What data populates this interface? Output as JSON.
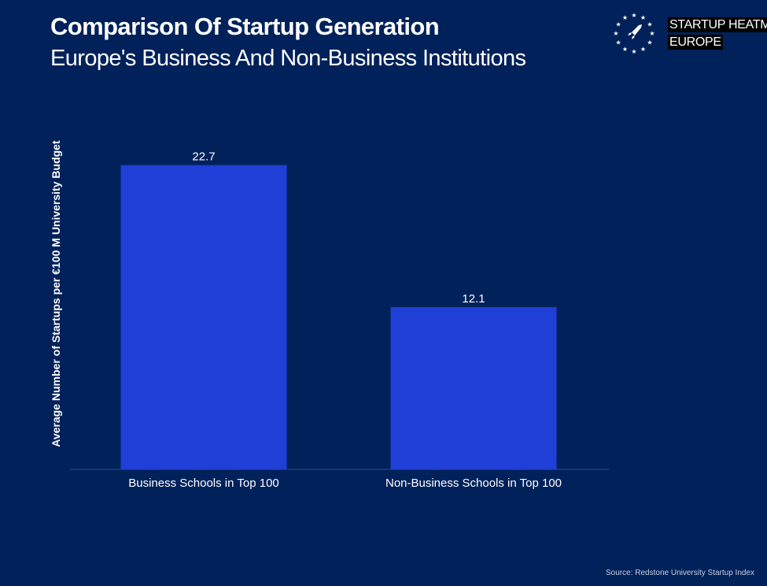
{
  "header": {
    "title": "Comparison Of Startup Generation",
    "subtitle": "Europe's Business And Non-Business Institutions"
  },
  "logo": {
    "icon": "eu-stars-rocket-icon",
    "line1": "STARTUP HEATMAP",
    "line2": "EUROPE"
  },
  "colors": {
    "background": "#00215a",
    "bar": "#1f3fd6",
    "text": "#ffffff"
  },
  "chart_data": {
    "type": "bar",
    "categories": [
      "Business Schools in Top 100",
      "Non-Business Schools in Top 100"
    ],
    "values": [
      22.7,
      12.1
    ],
    "data_labels": [
      "22.7",
      "12.1"
    ],
    "title": "Comparison Of Startup Generation",
    "subtitle": "Europe's Business And Non-Business Institutions",
    "xlabel": "",
    "ylabel": "Average Number of Startups per €100 M University Budget",
    "ylim": [
      0,
      23.5
    ],
    "grid": false,
    "legend": "none"
  },
  "footer": {
    "source": "Source: Redstone University Startup Index"
  }
}
